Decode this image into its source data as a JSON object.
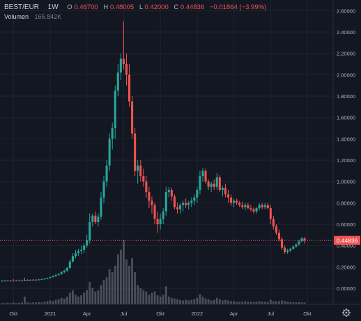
{
  "header": {
    "symbol": "BEST/EUR",
    "interval": "1W",
    "o_label": "O",
    "o_value": "0.46700",
    "h_label": "H",
    "h_value": "0.48005",
    "l_label": "L",
    "l_value": "0.42000",
    "c_label": "C",
    "c_value": "0.44836",
    "change": "−0.01864 (−3.99%)",
    "volume_label": "Volumen",
    "volume_value": "165.842K"
  },
  "last_price_label": "0.44836",
  "colors": {
    "background": "#131722",
    "up": "#26a69a",
    "down": "#ef5350",
    "volume": "#787b86",
    "grid": "#1f2430",
    "text": "#b2b5be",
    "last_price_line": "#ef5350"
  },
  "icons": {
    "settings": "gear-icon"
  },
  "chart_data": {
    "type": "candlestick",
    "x_tick_labels": [
      "Okt",
      "2021",
      "Apr",
      "Jul",
      "Okt",
      "2022",
      "Apr",
      "Jul",
      "Okt"
    ],
    "y_tick_labels": [
      "0.00000",
      "0.20000",
      "0.40000",
      "0.60000",
      "0.80000",
      "1.00000",
      "1.20000",
      "1.40000",
      "1.60000",
      "1.80000",
      "2.00000",
      "2.20000",
      "2.40000",
      "2.60000"
    ],
    "ylim": [
      -0.15,
      2.7
    ],
    "grid": true,
    "last_close": 0.44836,
    "series": [
      {
        "kind": "ohlc",
        "values": [
          [
            0.069,
            0.078,
            0.062,
            0.07
          ],
          [
            0.07,
            0.08,
            0.065,
            0.071
          ],
          [
            0.071,
            0.079,
            0.066,
            0.07
          ],
          [
            0.07,
            0.078,
            0.064,
            0.072
          ],
          [
            0.072,
            0.085,
            0.066,
            0.071
          ],
          [
            0.071,
            0.08,
            0.066,
            0.073
          ],
          [
            0.073,
            0.08,
            0.067,
            0.072
          ],
          [
            0.072,
            0.08,
            0.066,
            0.074
          ],
          [
            0.074,
            0.1,
            0.068,
            0.078
          ],
          [
            0.078,
            0.085,
            0.07,
            0.076
          ],
          [
            0.076,
            0.085,
            0.07,
            0.078
          ],
          [
            0.078,
            0.086,
            0.072,
            0.08
          ],
          [
            0.08,
            0.088,
            0.074,
            0.079
          ],
          [
            0.079,
            0.088,
            0.074,
            0.082
          ],
          [
            0.082,
            0.09,
            0.076,
            0.085
          ],
          [
            0.085,
            0.095,
            0.08,
            0.09
          ],
          [
            0.09,
            0.1,
            0.085,
            0.098
          ],
          [
            0.098,
            0.11,
            0.09,
            0.105
          ],
          [
            0.105,
            0.12,
            0.1,
            0.115
          ],
          [
            0.115,
            0.13,
            0.105,
            0.125
          ],
          [
            0.125,
            0.14,
            0.115,
            0.135
          ],
          [
            0.135,
            0.16,
            0.125,
            0.15
          ],
          [
            0.15,
            0.175,
            0.14,
            0.165
          ],
          [
            0.165,
            0.2,
            0.155,
            0.19
          ],
          [
            0.19,
            0.27,
            0.18,
            0.25
          ],
          [
            0.25,
            0.33,
            0.24,
            0.3
          ],
          [
            0.3,
            0.36,
            0.28,
            0.33
          ],
          [
            0.33,
            0.37,
            0.3,
            0.35
          ],
          [
            0.35,
            0.4,
            0.32,
            0.36
          ],
          [
            0.36,
            0.42,
            0.33,
            0.4
          ],
          [
            0.4,
            0.5,
            0.38,
            0.45
          ],
          [
            0.45,
            0.7,
            0.42,
            0.62
          ],
          [
            0.62,
            0.7,
            0.58,
            0.68
          ],
          [
            0.68,
            0.72,
            0.6,
            0.62
          ],
          [
            0.62,
            0.7,
            0.58,
            0.67
          ],
          [
            0.67,
            0.9,
            0.64,
            0.85
          ],
          [
            0.85,
            1.05,
            0.8,
            1.0
          ],
          [
            1.0,
            1.2,
            0.95,
            1.15
          ],
          [
            1.15,
            1.45,
            1.1,
            1.4
          ],
          [
            1.4,
            1.55,
            1.3,
            1.5
          ],
          [
            1.5,
            1.9,
            1.4,
            1.85
          ],
          [
            1.85,
            2.1,
            1.8,
            2.02
          ],
          [
            2.02,
            2.2,
            1.95,
            2.15
          ],
          [
            2.15,
            2.5,
            2.05,
            2.1
          ],
          [
            2.1,
            2.2,
            1.9,
            2.0
          ],
          [
            2.0,
            2.1,
            1.7,
            1.75
          ],
          [
            1.75,
            1.8,
            1.4,
            1.45
          ],
          [
            1.45,
            1.5,
            1.05,
            1.1
          ],
          [
            1.1,
            1.2,
            0.98,
            1.15
          ],
          [
            1.15,
            1.2,
            1.0,
            1.05
          ],
          [
            1.05,
            1.12,
            0.95,
            1.0
          ],
          [
            1.0,
            1.05,
            0.85,
            0.9
          ],
          [
            0.9,
            0.95,
            0.75,
            0.82
          ],
          [
            0.82,
            0.86,
            0.7,
            0.78
          ],
          [
            0.78,
            0.8,
            0.6,
            0.65
          ],
          [
            0.65,
            0.72,
            0.52,
            0.6
          ],
          [
            0.6,
            0.7,
            0.55,
            0.65
          ],
          [
            0.65,
            0.75,
            0.6,
            0.72
          ],
          [
            0.72,
            0.95,
            0.68,
            0.9
          ],
          [
            0.9,
            0.95,
            0.85,
            0.92
          ],
          [
            0.92,
            0.94,
            0.82,
            0.86
          ],
          [
            0.86,
            0.88,
            0.74,
            0.76
          ],
          [
            0.76,
            0.8,
            0.7,
            0.74
          ],
          [
            0.74,
            0.8,
            0.7,
            0.78
          ],
          [
            0.78,
            0.82,
            0.72,
            0.8
          ],
          [
            0.8,
            0.84,
            0.75,
            0.78
          ],
          [
            0.78,
            0.82,
            0.74,
            0.8
          ],
          [
            0.8,
            0.85,
            0.76,
            0.82
          ],
          [
            0.82,
            0.88,
            0.78,
            0.85
          ],
          [
            0.85,
            0.95,
            0.8,
            0.92
          ],
          [
            0.92,
            1.1,
            0.88,
            1.05
          ],
          [
            1.05,
            1.13,
            1.0,
            1.1
          ],
          [
            1.1,
            1.12,
            0.98,
            1.0
          ],
          [
            1.0,
            1.02,
            0.92,
            0.95
          ],
          [
            0.95,
            1.0,
            0.9,
            0.98
          ],
          [
            0.98,
            1.02,
            0.92,
            0.95
          ],
          [
            0.95,
            1.08,
            0.92,
            1.04
          ],
          [
            1.04,
            1.06,
            0.9,
            0.92
          ],
          [
            0.92,
            0.96,
            0.86,
            0.94
          ],
          [
            0.94,
            0.98,
            0.85,
            0.88
          ],
          [
            0.88,
            0.92,
            0.8,
            0.85
          ],
          [
            0.85,
            0.88,
            0.77,
            0.8
          ],
          [
            0.8,
            0.84,
            0.76,
            0.82
          ],
          [
            0.82,
            0.84,
            0.78,
            0.8
          ],
          [
            0.8,
            0.82,
            0.76,
            0.78
          ],
          [
            0.78,
            0.81,
            0.74,
            0.76
          ],
          [
            0.76,
            0.8,
            0.73,
            0.78
          ],
          [
            0.78,
            0.8,
            0.74,
            0.75
          ],
          [
            0.75,
            0.78,
            0.72,
            0.74
          ],
          [
            0.74,
            0.76,
            0.7,
            0.72
          ],
          [
            0.72,
            0.76,
            0.7,
            0.75
          ],
          [
            0.75,
            0.8,
            0.73,
            0.78
          ],
          [
            0.78,
            0.8,
            0.74,
            0.76
          ],
          [
            0.76,
            0.8,
            0.74,
            0.78
          ],
          [
            0.78,
            0.8,
            0.74,
            0.75
          ],
          [
            0.75,
            0.78,
            0.6,
            0.65
          ],
          [
            0.65,
            0.68,
            0.55,
            0.58
          ],
          [
            0.58,
            0.6,
            0.5,
            0.52
          ],
          [
            0.52,
            0.55,
            0.44,
            0.46
          ],
          [
            0.46,
            0.48,
            0.36,
            0.38
          ],
          [
            0.38,
            0.4,
            0.32,
            0.34
          ],
          [
            0.34,
            0.37,
            0.32,
            0.355
          ],
          [
            0.355,
            0.38,
            0.34,
            0.37
          ],
          [
            0.37,
            0.4,
            0.36,
            0.39
          ],
          [
            0.39,
            0.42,
            0.38,
            0.41
          ],
          [
            0.41,
            0.45,
            0.4,
            0.44
          ],
          [
            0.44,
            0.48,
            0.43,
            0.467
          ],
          [
            0.467,
            0.48005,
            0.42,
            0.44836
          ]
        ]
      },
      {
        "kind": "volume",
        "values": [
          0.02,
          0.02,
          0.025,
          0.02,
          0.03,
          0.02,
          0.025,
          0.03,
          0.12,
          0.03,
          0.025,
          0.03,
          0.03,
          0.035,
          0.03,
          0.04,
          0.05,
          0.06,
          0.05,
          0.07,
          0.08,
          0.1,
          0.09,
          0.12,
          0.18,
          0.22,
          0.15,
          0.12,
          0.14,
          0.18,
          0.22,
          0.35,
          0.25,
          0.2,
          0.22,
          0.3,
          0.38,
          0.42,
          0.55,
          0.5,
          0.6,
          0.78,
          0.85,
          1.0,
          0.7,
          0.6,
          0.72,
          0.5,
          0.3,
          0.25,
          0.22,
          0.2,
          0.15,
          0.18,
          0.2,
          0.14,
          0.12,
          0.15,
          0.28,
          0.12,
          0.1,
          0.09,
          0.08,
          0.07,
          0.06,
          0.07,
          0.06,
          0.07,
          0.08,
          0.1,
          0.16,
          0.12,
          0.09,
          0.08,
          0.06,
          0.07,
          0.1,
          0.08,
          0.06,
          0.07,
          0.06,
          0.05,
          0.05,
          0.04,
          0.04,
          0.04,
          0.05,
          0.04,
          0.04,
          0.035,
          0.04,
          0.05,
          0.04,
          0.04,
          0.035,
          0.07,
          0.05,
          0.045,
          0.05,
          0.06,
          0.05,
          0.04,
          0.035,
          0.03,
          0.03,
          0.035,
          0.03,
          0.03
        ]
      }
    ]
  }
}
